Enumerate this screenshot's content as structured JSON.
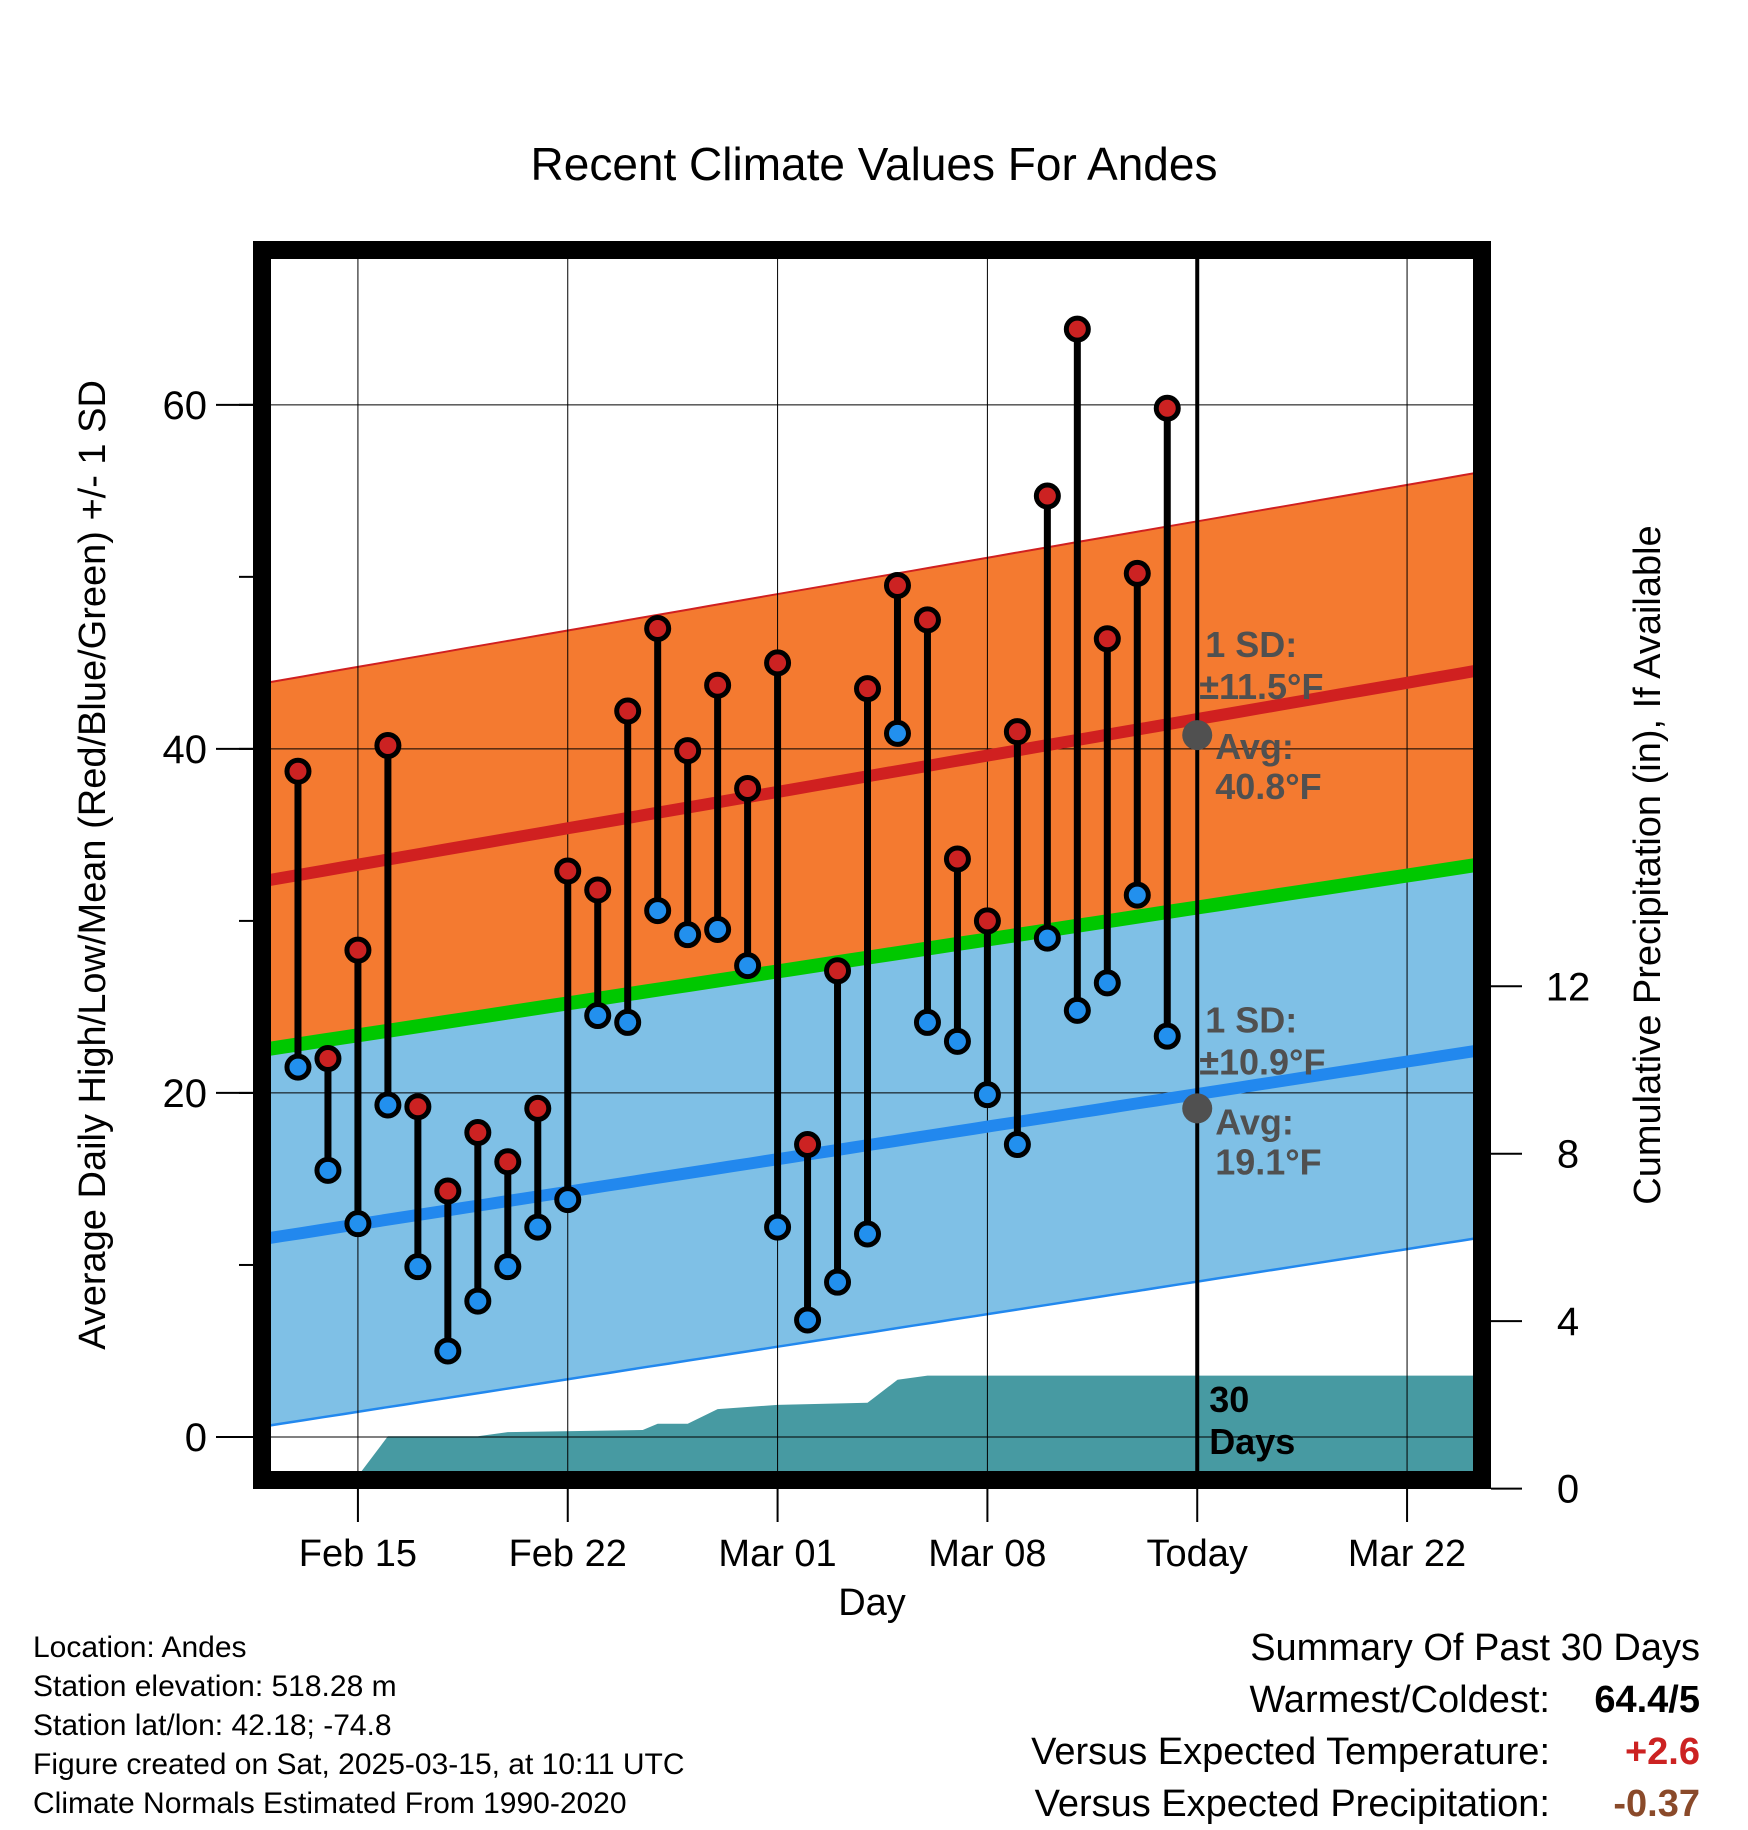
{
  "chart_data": {
    "type": "line",
    "title": "Recent Climate Values For Andes",
    "xlabel": "Day",
    "ylabel_left": "Average Daily High/Low/Mean (Red/Blue/Green) +/- 1 SD",
    "ylabel_right": "Cumulative Precipitation (in), If Available",
    "x_ticks": [
      {
        "day": 0,
        "label": "Feb 15"
      },
      {
        "day": 7,
        "label": "Feb 22"
      },
      {
        "day": 14,
        "label": "Mar 01"
      },
      {
        "day": 21,
        "label": "Mar 08"
      },
      {
        "day": 28,
        "label": "Today"
      },
      {
        "day": 35,
        "label": "Mar 22"
      }
    ],
    "xlim": [
      -3.2,
      37.5
    ],
    "ylim": [
      -2.5,
      69
    ],
    "y_ticks": [
      0,
      20,
      40,
      60
    ],
    "y_right_ticks": [
      0,
      4,
      8,
      12
    ],
    "y_right_range_in_left_units": [
      -3.0,
      26.2
    ],
    "y_right_lim": [
      0,
      12
    ],
    "high_normal": {
      "start": 32.3,
      "end": 44.6,
      "sd": 11.5,
      "today_avg": 40.8
    },
    "low_normal": {
      "start": 11.5,
      "end": 22.5,
      "sd": 10.9,
      "today_avg": 19.1
    },
    "mean_normal": {
      "start": 22.5,
      "end": 33.3
    },
    "today_day": 28,
    "daily_days": [
      -2,
      -1,
      0,
      1,
      2,
      3,
      4,
      5,
      6,
      7,
      8,
      9,
      10,
      11,
      12,
      13,
      14,
      15,
      16,
      17,
      18,
      19,
      20,
      21,
      22,
      23,
      24,
      25,
      26,
      27
    ],
    "daily_highs": [
      38.7,
      22.0,
      28.3,
      40.2,
      19.2,
      14.3,
      17.7,
      16.0,
      19.1,
      32.9,
      31.8,
      42.2,
      47.0,
      39.9,
      43.7,
      37.7,
      45.0,
      17.0,
      27.1,
      43.5,
      49.5,
      47.5,
      33.6,
      30.0,
      41.0,
      54.7,
      64.4,
      46.4,
      50.2,
      59.8
    ],
    "daily_lows": [
      21.5,
      15.5,
      12.4,
      19.3,
      9.9,
      5.0,
      7.9,
      9.9,
      12.2,
      13.8,
      24.5,
      24.1,
      30.6,
      29.2,
      29.5,
      27.4,
      12.2,
      6.8,
      9.0,
      11.8,
      40.9,
      24.1,
      23.0,
      19.9,
      17.0,
      29.0,
      24.8,
      26.4,
      31.5,
      23.3
    ],
    "precip_cumulative": [
      {
        "day": -3.2,
        "v": 0
      },
      {
        "day": -0.6,
        "v": 0
      },
      {
        "day": 0,
        "v": 0.3
      },
      {
        "day": 1.0,
        "v": 1.25
      },
      {
        "day": 4.0,
        "v": 1.25
      },
      {
        "day": 5.0,
        "v": 1.35
      },
      {
        "day": 9.5,
        "v": 1.4
      },
      {
        "day": 10.0,
        "v": 1.55
      },
      {
        "day": 11.0,
        "v": 1.55
      },
      {
        "day": 12.0,
        "v": 1.9
      },
      {
        "day": 14.0,
        "v": 2.0
      },
      {
        "day": 17.0,
        "v": 2.05
      },
      {
        "day": 18.0,
        "v": 2.6
      },
      {
        "day": 19.0,
        "v": 2.7
      },
      {
        "day": 37.5,
        "v": 2.7
      }
    ],
    "annotations": {
      "high_sd": "1 SD:",
      "high_sd_value": "±11.5°F",
      "high_avg_label": "Avg:",
      "high_avg_value": "40.8°F",
      "low_sd": "1 SD:",
      "low_sd_value": "±10.9°F",
      "low_avg_label": "Avg:",
      "low_avg_value": "19.1°F",
      "days_count": "30",
      "days_word": "Days"
    },
    "colors": {
      "high_band": "#f47a30",
      "high_line": "#d02020",
      "low_band": "#7fc0e6",
      "low_line": "#2288ee",
      "mean_line": "#00c800",
      "precip": "#479aa2",
      "high_dot": "#cc2222",
      "low_dot": "#2290ee",
      "today_dot": "#505050",
      "annotation": "#505050"
    }
  },
  "info": {
    "location": "Location: Andes",
    "elevation": "Station elevation: 518.28 m",
    "latlon": "Station lat/lon: 42.18; -74.8",
    "created": "Figure created on Sat, 2025-03-15, at 10:11 UTC",
    "normals": "Climate Normals Estimated From 1990-2020"
  },
  "summary": {
    "title": "Summary Of Past 30 Days",
    "warmest_label": "Warmest/Coldest:",
    "warmest_value": "64.4/5",
    "temp_label": "Versus Expected Temperature:",
    "temp_value": "+2.6",
    "precip_label": "Versus Expected Precipitation:",
    "precip_value": "-0.37"
  }
}
